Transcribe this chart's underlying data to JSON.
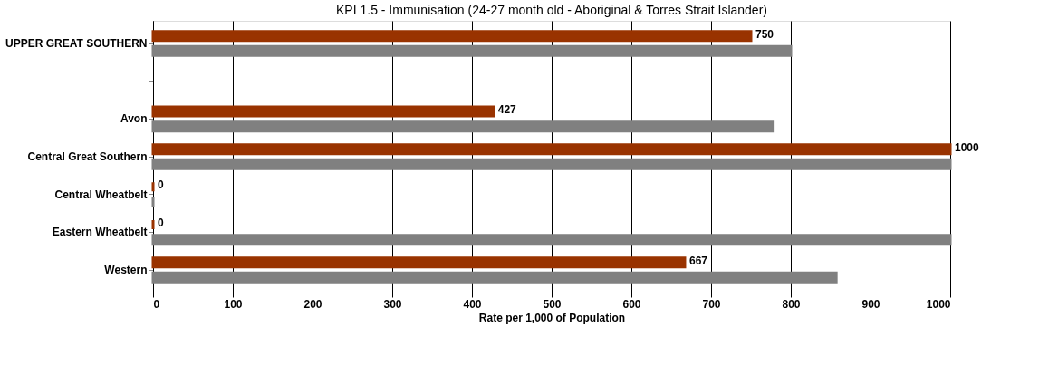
{
  "chart_data": {
    "type": "bar",
    "orientation": "horizontal",
    "title": "KPI 1.5 - Immunisation (24-27 month old - Aboriginal & Torres Strait Islander)",
    "xlabel": "Rate per 1,000 of Population",
    "categories": [
      "UPPER GREAT SOUTHERN",
      null,
      "Avon",
      "Central Great Southern",
      "Central Wheatbelt",
      "Eastern Wheatbelt",
      "Western"
    ],
    "series": [
      {
        "color": "#993300",
        "values": [
          750,
          null,
          427,
          1000,
          0,
          0,
          667
        ],
        "value_labels": [
          "750",
          null,
          "427",
          "1000",
          "0",
          "0",
          "667"
        ]
      },
      {
        "color": "#808080",
        "values": [
          800,
          null,
          778,
          1000,
          0,
          1000,
          857
        ]
      }
    ],
    "xlim": [
      0,
      1000
    ],
    "xticks": [
      0,
      100,
      200,
      300,
      400,
      500,
      600,
      700,
      800,
      900,
      1000
    ],
    "grid": "x",
    "legend": false
  }
}
